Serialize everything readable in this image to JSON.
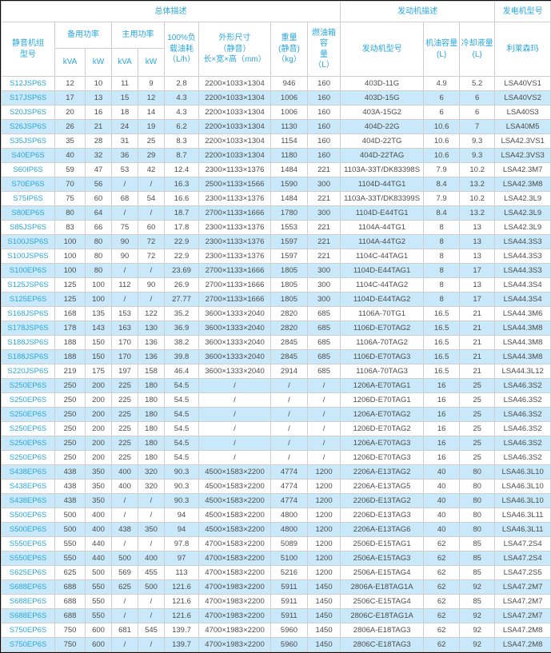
{
  "colors": {
    "accent_cyan": "#2aa7e0",
    "stripe_blue": "#c9e8f9",
    "text_gray": "#4d4d4d",
    "border_gray": "#cfcfcf"
  },
  "table": {
    "headers": {
      "group_overall": "总体描述",
      "group_engine": "发动机描述",
      "group_alternator": "发电机型号",
      "model": "静音机组\n型号",
      "standby_power": "备用功率",
      "prime_power": "主用功率",
      "kva": "kVA",
      "kw": "kW",
      "fuel_consumption": "100%负\n载油耗\n（L/h）",
      "dimensions": "外形尺寸\n（静音）\n长×宽×高（mm）",
      "weight": "重量\n(静音)\n（kg）",
      "tank": "燃油箱容\n量\n（L）",
      "engine_model": "发动机型号",
      "oil_capacity": "机油容量\n(L)",
      "coolant_capacity": "冷却液量\n(L)",
      "leroy_somer": "利莱森玛"
    },
    "column_keys": [
      "model",
      "standby-kva",
      "standby-kw",
      "prime-kva",
      "prime-kw",
      "fuel-lph",
      "dimensions-mm",
      "weight-kg",
      "tank-l",
      "engine-model",
      "oil-l",
      "coolant-l",
      "leroy-somer"
    ],
    "rows": [
      [
        "S12JSP6S",
        "12",
        "10",
        "11",
        "9",
        "2.8",
        "2200×1033×1304",
        "946",
        "160",
        "403D-11G",
        "4.9",
        "5.2",
        "LSA40VS1"
      ],
      [
        "S17JSP6S",
        "17",
        "13",
        "15",
        "12",
        "4.3",
        "2200×1033×1304",
        "1006",
        "160",
        "403D-15G",
        "6",
        "6",
        "LSA40VS2"
      ],
      [
        "S20JSP6S",
        "20",
        "16",
        "18",
        "14",
        "4.3",
        "2200×1033×1304",
        "1006",
        "160",
        "403A-15G2",
        "6",
        "6",
        "LSA40S3"
      ],
      [
        "S26JSP6S",
        "26",
        "21",
        "24",
        "19",
        "6.2",
        "2200×1033×1304",
        "1130",
        "160",
        "404D-22G",
        "10.6",
        "7",
        "LSA40M5"
      ],
      [
        "S35JSP6S",
        "35",
        "28",
        "31",
        "25",
        "8.3",
        "2200×1033×1304",
        "1154",
        "160",
        "404D-22TG",
        "10.6",
        "9.3",
        "LSA42.3VS1"
      ],
      [
        "S40EP6S",
        "40",
        "32",
        "36",
        "29",
        "8.7",
        "2200×1033×1304",
        "1180",
        "160",
        "404D-22TAG",
        "10.6",
        "9.3",
        "LSA42.3VS3"
      ],
      [
        "S60IP6S",
        "59",
        "47",
        "53",
        "42",
        "12.4",
        "2300×1133×1376",
        "1484",
        "221",
        "1103A-33T/DK83398S",
        "7.9",
        "10.2",
        "LSA42.3M7"
      ],
      [
        "S70EP6S",
        "70",
        "56",
        "/",
        "/",
        "16.3",
        "2500×1133×1566",
        "1590",
        "300",
        "1104D-44TG1",
        "8.4",
        "13.2",
        "LSA42.3M8"
      ],
      [
        "S75IP6S",
        "75",
        "60",
        "68",
        "54",
        "16.6",
        "2300×1133×1376",
        "1484",
        "221",
        "1103A-33T/DK83399S",
        "7.9",
        "10.2",
        "LSA42.3L9"
      ],
      [
        "S80EP6S",
        "80",
        "64",
        "/",
        "/",
        "18.7",
        "2700×1133×1666",
        "1780",
        "300",
        "1104D-E44TG1",
        "8.4",
        "13.2",
        "LSA42.3L9"
      ],
      [
        "S85JSP6S",
        "83",
        "66",
        "75",
        "60",
        "17.8",
        "2300×1133×1376",
        "1553",
        "221",
        "1104A-44TG1",
        "8",
        "13",
        "LSA42.3L9"
      ],
      [
        "S100JSP6S",
        "100",
        "80",
        "90",
        "72",
        "22.9",
        "2300×1133×1376",
        "1597",
        "221",
        "1104A-44TG2",
        "8",
        "13",
        "LSA44.3S3"
      ],
      [
        "S100JSP6S",
        "100",
        "80",
        "90",
        "72",
        "22.9",
        "2300×1133×1376",
        "1597",
        "221",
        "1104C-44TAG1",
        "8",
        "13",
        "LSA44.3S3"
      ],
      [
        "S100EP6S",
        "100",
        "80",
        "/",
        "/",
        "23.69",
        "2700×1133×1666",
        "1805",
        "300",
        "1104D-E44TAG1",
        "8",
        "17",
        "LSA44.3S3"
      ],
      [
        "S125JSP6S",
        "125",
        "100",
        "112",
        "90",
        "26.9",
        "2700×1133×1666",
        "1805",
        "300",
        "1104C-44TAG2",
        "8",
        "13",
        "LSA44.3S4"
      ],
      [
        "S125EP6S",
        "125",
        "100",
        "/",
        "/",
        "27.77",
        "2700×1133×1666",
        "1805",
        "300",
        "1104D-E44TAG2",
        "8",
        "17",
        "LSA44.3S4"
      ],
      [
        "S168JSP6S",
        "168",
        "135",
        "153",
        "122",
        "35.2",
        "3600×1333×2040",
        "2820",
        "685",
        "1106A-70TG1",
        "16.5",
        "21",
        "LSA44.3M6"
      ],
      [
        "S178JSP6S",
        "178",
        "143",
        "163",
        "130",
        "36.9",
        "3600×1333×2040",
        "2820",
        "685",
        "1106D-E70TAG2",
        "16.5",
        "21",
        "LSA44.3M8"
      ],
      [
        "S188JSP6S",
        "188",
        "150",
        "170",
        "136",
        "38.2",
        "3600×1333×2040",
        "2845",
        "685",
        "1106A-70TAG2",
        "16.5",
        "21",
        "LSA44.3M8"
      ],
      [
        "S188JSP6S",
        "188",
        "150",
        "170",
        "136",
        "39.8",
        "3600×1333×2040",
        "2845",
        "685",
        "1106D-E70TAG3",
        "16.5",
        "21",
        "LSA44.3M8"
      ],
      [
        "S220JSP6S",
        "219",
        "175",
        "197",
        "158",
        "46.4",
        "3600×1333×2040",
        "2914",
        "685",
        "1106A-70TAG3",
        "16.5",
        "21",
        "LSA44.3L12"
      ],
      [
        "S250EP6S",
        "250",
        "200",
        "225",
        "180",
        "54.5",
        "/",
        "/",
        "/",
        "1206A-E70TAG1",
        "16",
        "25",
        "LSA46.3S2"
      ],
      [
        "S250EP6S",
        "250",
        "200",
        "225",
        "180",
        "54.5",
        "/",
        "/",
        "/",
        "1206D-E70TAG1",
        "16",
        "25",
        "LSA46.3S2"
      ],
      [
        "S250EP6S",
        "250",
        "200",
        "225",
        "180",
        "54.5",
        "/",
        "/",
        "/",
        "1206A-E70TAG2",
        "16",
        "25",
        "LSA46.3S2"
      ],
      [
        "S250EP6S",
        "250",
        "200",
        "225",
        "180",
        "54.5",
        "/",
        "/",
        "/",
        "1206D-E70TAG2",
        "16",
        "25",
        "LSA46.3S2"
      ],
      [
        "S250EP6S",
        "250",
        "200",
        "225",
        "180",
        "54.5",
        "/",
        "/",
        "/",
        "1206A-E70TAG3",
        "16",
        "25",
        "LSA46.3S2"
      ],
      [
        "S250EP6S",
        "250",
        "200",
        "225",
        "180",
        "54.5",
        "/",
        "/",
        "/",
        "1206D-E70TAG3",
        "16",
        "25",
        "LSA46.3S2"
      ],
      [
        "S438EP6S",
        "438",
        "350",
        "400",
        "320",
        "90.3",
        "4500×1583×2200",
        "4774",
        "1200",
        "2206A-E13TAG2",
        "40",
        "80",
        "LSA46.3L10"
      ],
      [
        "S438EP6S",
        "438",
        "350",
        "400",
        "320",
        "90.3",
        "4500×1583×2200",
        "4774",
        "1200",
        "2206A-E13TAG5",
        "40",
        "80",
        "LSA46.3L10"
      ],
      [
        "S438EP6S",
        "438",
        "350",
        "/",
        "/",
        "90.3",
        "4500×1583×2200",
        "4774",
        "1200",
        "2206D-E13TAG2",
        "40",
        "80",
        "LSA46.3L10"
      ],
      [
        "S500EP6S",
        "500",
        "400",
        "/",
        "/",
        "94",
        "4500×1583×2200",
        "4800",
        "1200",
        "2206D-E13TAG3",
        "40",
        "80",
        "LSA46.3L11"
      ],
      [
        "S500EP6S",
        "500",
        "400",
        "438",
        "350",
        "94",
        "4500×1583×2200",
        "4800",
        "1200",
        "2206A-E13TAG6",
        "40",
        "80",
        "LSA46.3L11"
      ],
      [
        "S550EP6S",
        "550",
        "440",
        "/",
        "/",
        "97.8",
        "4700×1583×2200",
        "5089",
        "1200",
        "2506D-E15TAG1",
        "62",
        "85",
        "LSA47.2S4"
      ],
      [
        "S550EP6S",
        "550",
        "440",
        "500",
        "400",
        "97",
        "4700×1583×2200",
        "5100",
        "1200",
        "2506A-E15TAG3",
        "62",
        "85",
        "LSA47.2S4"
      ],
      [
        "S625EP6S",
        "625",
        "500",
        "569",
        "455",
        "113",
        "4700×1583×2200",
        "5216",
        "1200",
        "2506A-E15TAG4",
        "62",
        "85",
        "LSA47.2S5"
      ],
      [
        "S688EP6S",
        "688",
        "550",
        "625",
        "500",
        "121.6",
        "4700×1983×2200",
        "5911",
        "1450",
        "2806A-E18TAG1A",
        "62",
        "92",
        "LSA47.2M7"
      ],
      [
        "S688EP6S",
        "688",
        "550",
        "/",
        "/",
        "121.6",
        "4700×1983×2200",
        "5911",
        "1450",
        "2506C-E15TAG4",
        "62",
        "85",
        "LSA47.2M7"
      ],
      [
        "S688EP6S",
        "688",
        "550",
        "/",
        "/",
        "121.6",
        "4700×1983×2200",
        "5911",
        "1450",
        "2806C-E18TAG1A",
        "62",
        "92",
        "LSA47.2M7"
      ],
      [
        "S750EP6S",
        "750",
        "600",
        "681",
        "545",
        "139.7",
        "4700×1983×2200",
        "5960",
        "1450",
        "2806A-E18TAG3",
        "62",
        "92",
        "LSA47.2M8"
      ],
      [
        "S750EP6S",
        "750",
        "600",
        "/",
        "/",
        "139.7",
        "4700×1983×2200",
        "5960",
        "1450",
        "2806C-E18TAG3",
        "62",
        "92",
        "LSA47.2M8"
      ]
    ]
  }
}
